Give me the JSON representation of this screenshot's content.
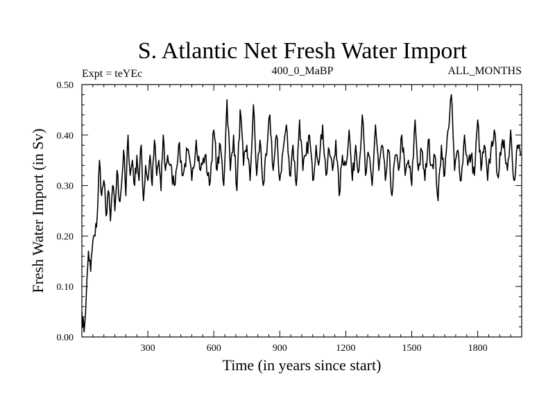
{
  "chart_data": {
    "type": "line",
    "title": "S. Atlantic Net Fresh Water Import",
    "subtitle_left": "Expt = teYEc",
    "subtitle_center": "400_0_MaBP",
    "subtitle_right": "ALL_MONTHS",
    "xlabel": "Time (in years since start)",
    "ylabel": "Fresh Water Import (in Sv)",
    "xlim": [
      0,
      2000
    ],
    "ylim": [
      0.0,
      0.5
    ],
    "xticks": [
      300,
      600,
      900,
      1200,
      1500,
      1800
    ],
    "xtick_labels": [
      "300",
      "600",
      "900",
      "1200",
      "1500",
      "1800"
    ],
    "yticks": [
      0.0,
      0.1,
      0.2,
      0.3,
      0.4,
      0.5
    ],
    "ytick_labels": [
      "0.00",
      "0.10",
      "0.20",
      "0.30",
      "0.40",
      "0.50"
    ],
    "series": [
      {
        "name": "Net Fresh Water Import",
        "color": "#000000",
        "x": [
          0,
          10,
          20,
          30,
          40,
          50,
          60,
          70,
          80,
          90,
          100,
          110,
          120,
          130,
          140,
          150,
          160,
          170,
          180,
          190,
          200,
          210,
          220,
          230,
          240,
          250,
          260,
          270,
          280,
          290,
          300,
          310,
          320,
          330,
          340,
          350,
          360,
          370,
          380,
          390,
          400,
          420,
          440,
          460,
          480,
          500,
          520,
          540,
          560,
          580,
          600,
          615,
          630,
          645,
          660,
          675,
          690,
          705,
          720,
          735,
          750,
          765,
          780,
          795,
          810,
          825,
          840,
          855,
          870,
          885,
          900,
          915,
          930,
          945,
          960,
          975,
          990,
          1005,
          1020,
          1035,
          1050,
          1065,
          1080,
          1095,
          1110,
          1125,
          1140,
          1155,
          1170,
          1185,
          1200,
          1215,
          1230,
          1245,
          1260,
          1275,
          1290,
          1305,
          1320,
          1335,
          1350,
          1365,
          1380,
          1395,
          1410,
          1425,
          1440,
          1455,
          1470,
          1485,
          1500,
          1515,
          1530,
          1545,
          1560,
          1575,
          1590,
          1605,
          1620,
          1635,
          1650,
          1665,
          1680,
          1695,
          1710,
          1725,
          1740,
          1755,
          1770,
          1785,
          1800,
          1815,
          1830,
          1845,
          1860,
          1875,
          1890,
          1905,
          1920,
          1935,
          1950,
          1965,
          1980,
          1995
        ],
        "y": [
          0.05,
          0.01,
          0.08,
          0.17,
          0.13,
          0.19,
          0.2,
          0.24,
          0.35,
          0.28,
          0.31,
          0.24,
          0.29,
          0.23,
          0.3,
          0.25,
          0.33,
          0.27,
          0.3,
          0.37,
          0.28,
          0.4,
          0.32,
          0.35,
          0.3,
          0.36,
          0.31,
          0.38,
          0.27,
          0.34,
          0.31,
          0.36,
          0.3,
          0.39,
          0.32,
          0.35,
          0.29,
          0.4,
          0.33,
          0.36,
          0.34,
          0.3,
          0.38,
          0.32,
          0.37,
          0.31,
          0.39,
          0.33,
          0.36,
          0.3,
          0.41,
          0.33,
          0.38,
          0.3,
          0.47,
          0.33,
          0.4,
          0.29,
          0.45,
          0.34,
          0.38,
          0.31,
          0.46,
          0.32,
          0.39,
          0.3,
          0.36,
          0.44,
          0.33,
          0.4,
          0.31,
          0.37,
          0.42,
          0.32,
          0.38,
          0.3,
          0.43,
          0.33,
          0.36,
          0.4,
          0.31,
          0.38,
          0.35,
          0.42,
          0.32,
          0.37,
          0.33,
          0.39,
          0.28,
          0.36,
          0.34,
          0.41,
          0.31,
          0.38,
          0.33,
          0.44,
          0.32,
          0.36,
          0.3,
          0.42,
          0.33,
          0.38,
          0.31,
          0.37,
          0.28,
          0.36,
          0.33,
          0.4,
          0.32,
          0.35,
          0.3,
          0.43,
          0.33,
          0.37,
          0.31,
          0.39,
          0.34,
          0.36,
          0.27,
          0.38,
          0.32,
          0.41,
          0.48,
          0.33,
          0.37,
          0.31,
          0.4,
          0.34,
          0.36,
          0.32,
          0.43,
          0.33,
          0.38,
          0.31,
          0.37,
          0.41,
          0.32,
          0.36,
          0.39,
          0.33,
          0.41,
          0.31,
          0.38,
          0.36
        ]
      }
    ]
  }
}
